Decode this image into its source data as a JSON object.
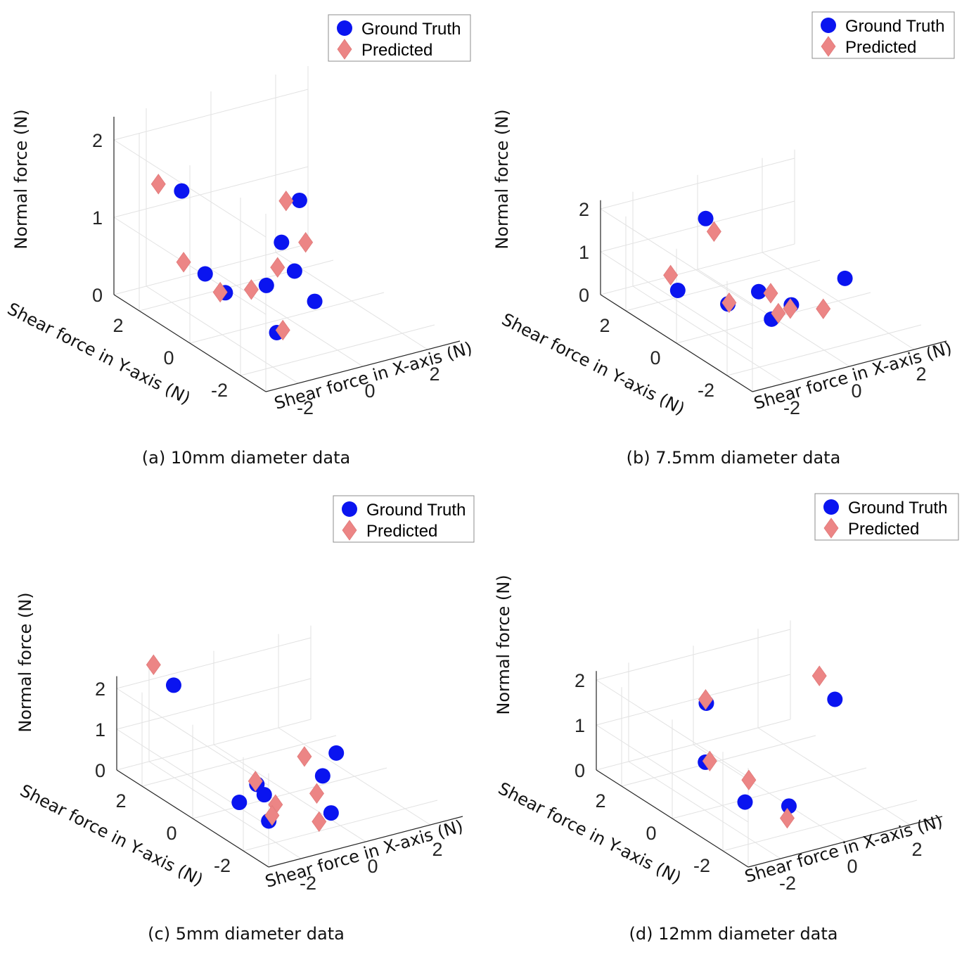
{
  "chart_data": [
    {
      "type": "scatter3d",
      "caption": "(a) 10mm diameter data",
      "xlabel": "Shear force in X-axis (N)",
      "ylabel": "Shear force in Y-axis (N)",
      "zlabel": "Normal force (N)",
      "xlim": [
        -3,
        3
      ],
      "ylim": [
        -3,
        3
      ],
      "zlim": [
        0,
        2.3
      ],
      "xticks": [
        "-2",
        "0",
        "2"
      ],
      "yticks": [
        "-2",
        "0",
        "2"
      ],
      "zticks": [
        "0",
        "1",
        "2"
      ],
      "legend": [
        "Ground Truth",
        "Predicted"
      ],
      "series": [
        {
          "name": "Ground Truth",
          "points": [
            [
              -1.14,
              2.7,
              1.2
            ],
            [
              -1.4,
              1.44,
              0.42
            ],
            [
              -1.42,
              0.62,
              0.35
            ],
            [
              -0.4,
              0.3,
              0.4
            ],
            [
              1.07,
              0.87,
              1.22
            ],
            [
              0.96,
              1.44,
              0.57
            ],
            [
              0.26,
              0.03,
              0.57
            ],
            [
              0.14,
              -0.92,
              0.39
            ],
            [
              -1.05,
              -0.94,
              0.12
            ]
          ]
        },
        {
          "name": "Predicted",
          "points": [
            [
              -1.68,
              2.93,
              1.3
            ],
            [
              -1.55,
              2.1,
              0.45
            ],
            [
              -1.46,
              0.77,
              0.33
            ],
            [
              -0.74,
              0.46,
              0.35
            ],
            [
              0.89,
              1.17,
              1.17
            ],
            [
              1.33,
              0.96,
              0.63
            ],
            [
              0.44,
              0.93,
              0.41
            ],
            [
              -0.83,
              -0.9,
              0.12
            ]
          ]
        }
      ]
    },
    {
      "type": "scatter3d",
      "caption": "(b) 7.5mm diameter data",
      "xlabel": "Shear force in X-axis (N)",
      "ylabel": "Shear force in Y-axis (N)",
      "zlabel": "Normal force (N)",
      "xlim": [
        -3,
        3
      ],
      "ylim": [
        -3,
        3
      ],
      "zlim": [
        0,
        2.2
      ],
      "xticks": [
        "-2",
        "0",
        "2"
      ],
      "yticks": [
        "-2",
        "0",
        "2"
      ],
      "zticks": [
        "0",
        "1",
        "2"
      ],
      "legend": [
        "Ground Truth",
        "Predicted"
      ],
      "series": [
        {
          "name": "Ground Truth",
          "points": [
            [
              -0.14,
              2.5,
              1.4
            ],
            [
              -1.63,
              1.7,
              0.32
            ],
            [
              -0.73,
              0.87,
              0.14
            ],
            [
              0.06,
              0.66,
              0.35
            ],
            [
              -0.28,
              -0.28,
              0.13
            ],
            [
              0.63,
              0.1,
              0.14
            ],
            [
              2.6,
              0.5,
              0.22
            ]
          ]
        },
        {
          "name": "Predicted",
          "points": [
            [
              -0.11,
              2.21,
              1.2
            ],
            [
              -1.28,
              2.43,
              0.33
            ],
            [
              -0.66,
              0.91,
              0.14
            ],
            [
              0.21,
              0.38,
              0.39
            ],
            [
              -0.03,
              -0.23,
              0.2
            ],
            [
              0.48,
              -0.05,
              0.14
            ],
            [
              1.24,
              -0.38,
              0.11
            ]
          ]
        }
      ]
    },
    {
      "type": "scatter3d",
      "caption": "(c) 5mm diameter data",
      "xlabel": "Shear force in X-axis (N)",
      "ylabel": "Shear force in Y-axis (N)",
      "zlabel": "Normal force (N)",
      "xlim": [
        -3,
        3
      ],
      "ylim": [
        -3,
        3
      ],
      "zlim": [
        0,
        2.3
      ],
      "xticks": [
        "-2",
        "0",
        "2"
      ],
      "yticks": [
        "-2",
        "0",
        "2"
      ],
      "zticks": [
        "0",
        "1",
        "2"
      ],
      "legend": [
        "Ground Truth",
        "Predicted"
      ],
      "series": [
        {
          "name": "Ground Truth",
          "points": [
            [
              -1.78,
              2.31,
              2.1
            ],
            [
              -1.59,
              -0.04,
              0.12
            ],
            [
              -0.6,
              0.53,
              0.13
            ],
            [
              -0.85,
              -0.08,
              0.17
            ],
            [
              -1.54,
              -1.14,
              0.09
            ],
            [
              0.09,
              -1.52,
              0.1
            ],
            [
              0.94,
              -0.1,
              0.27
            ],
            [
              1.87,
              0.55,
              0.38
            ]
          ]
        },
        {
          "name": "Predicted",
          "points": [
            [
              -1.8,
              3.08,
              2.3
            ],
            [
              -0.76,
              -0.41,
              0.04
            ],
            [
              -0.59,
              0.6,
              0.18
            ],
            [
              -1.25,
              -0.9,
              0.07
            ],
            [
              -0.43,
              -1.71,
              0.07
            ],
            [
              0.32,
              -0.66,
              0.19
            ],
            [
              1.12,
              0.85,
              0.33
            ]
          ]
        }
      ]
    },
    {
      "type": "scatter3d",
      "caption": "(d) 12mm diameter data",
      "xlabel": "Shear force in X-axis (N)",
      "ylabel": "Shear force in Y-axis (N)",
      "zlabel": "Normal force (N)",
      "xlim": [
        -3,
        3
      ],
      "ylim": [
        -3,
        3
      ],
      "zlim": [
        0,
        2.2
      ],
      "xticks": [
        "-2",
        "0",
        "2"
      ],
      "yticks": [
        "-2",
        "0",
        "2"
      ],
      "zticks": [
        "0",
        "1",
        "2"
      ],
      "legend": [
        "Ground Truth",
        "Predicted"
      ],
      "series": [
        {
          "name": "Ground Truth",
          "points": [
            [
              2.13,
              0.13,
              1.64
            ],
            [
              0.01,
              2.5,
              1.1
            ],
            [
              -0.8,
              1.5,
              0.3
            ],
            [
              -0.93,
              -0.23,
              0.06
            ],
            [
              -0.12,
              -0.93,
              0.07
            ]
          ]
        },
        {
          "name": "Predicted",
          "points": [
            [
              2.44,
              1.14,
              1.74
            ],
            [
              0.09,
              2.63,
              1.12
            ],
            [
              -0.62,
              1.56,
              0.27
            ],
            [
              -0.32,
              0.4,
              0.21
            ],
            [
              -0.62,
              -1.5,
              0.1
            ]
          ]
        }
      ]
    }
  ]
}
